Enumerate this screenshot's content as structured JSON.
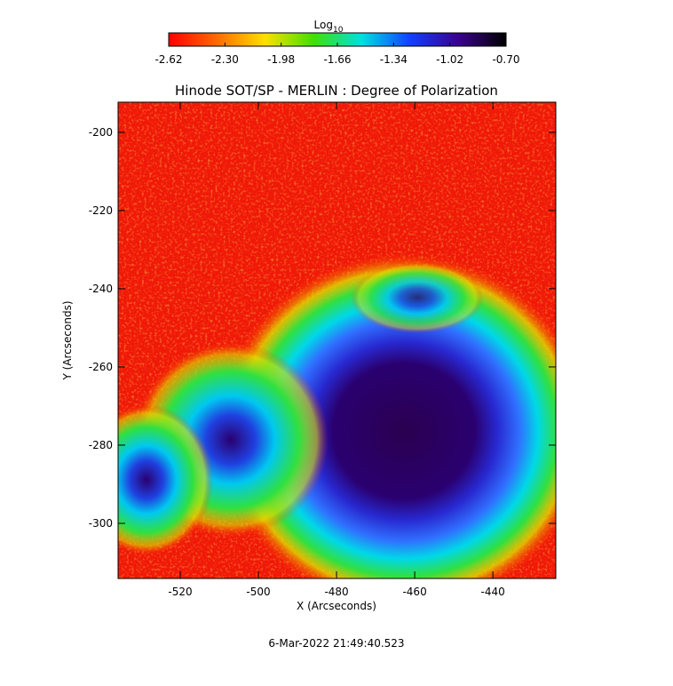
{
  "chart_data": {
    "type": "image",
    "title": "Hinode SOT/SP - MERLIN : Degree of Polarization",
    "x_label": "X (Arcseconds)",
    "y_label": "Y (Arcseconds)",
    "footer": "6-Mar-2022 21:49:40.523",
    "xlim": [
      -535.9,
      -423.9
    ],
    "xticks": [
      -520,
      -500,
      -480,
      -460,
      -440
    ],
    "ylim": [
      -192.3,
      -314.1
    ],
    "yticks": [
      -200,
      -220,
      -240,
      -260,
      -280,
      -300
    ],
    "colorbar": {
      "label": "Log",
      "label_sub": "10",
      "lim": [
        -2.62,
        -0.7
      ],
      "ticks": [
        -2.62,
        {
          "value": -2.3,
          "label": "-2.30"
        },
        -1.98,
        -1.66,
        -1.34,
        -1.02,
        {
          "value": -0.7,
          "label": "-0.70"
        }
      ],
      "colors": [
        "#ff0000",
        "#ff6a00",
        "#ffe000",
        "#40e000",
        "#00e0e0",
        "#1040ff",
        "#3a0090",
        "#000000"
      ]
    }
  }
}
